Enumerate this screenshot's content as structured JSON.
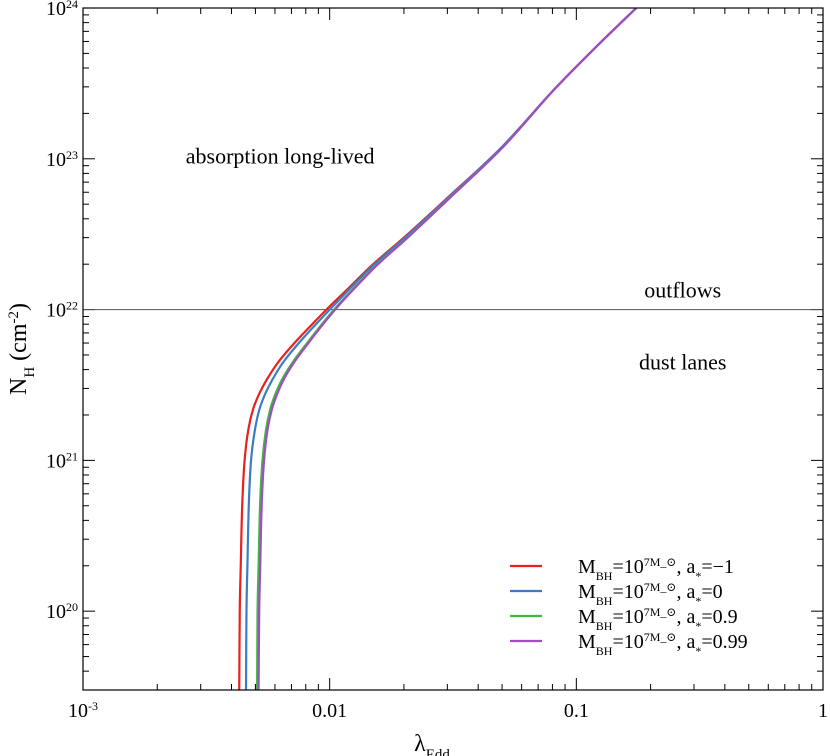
{
  "chart_data": {
    "type": "line",
    "xlabel": "λ_Edd",
    "ylabel": "N_H (cm^-2)",
    "x_scale": "log",
    "y_scale": "log",
    "xlim": [
      0.001,
      1
    ],
    "ylim": [
      3e+19,
      1e+24
    ],
    "x_ticks": [
      {
        "value": 0.001,
        "label": "10^-3"
      },
      {
        "value": 0.01,
        "label": "0.01"
      },
      {
        "value": 0.1,
        "label": "0.1"
      },
      {
        "value": 1,
        "label": "1"
      }
    ],
    "y_ticks": [
      {
        "value": 1e+20,
        "label": "10^20"
      },
      {
        "value": 1e+21,
        "label": "10^21"
      },
      {
        "value": 1e+22,
        "label": "10^22"
      },
      {
        "value": 1e+23,
        "label": "10^23"
      },
      {
        "value": 1e+24,
        "label": "10^24"
      }
    ],
    "reference_line": {
      "y": 1e+22
    },
    "annotations": [
      {
        "text": "absorption long-lived",
        "x": 0.0063,
        "y": 9.3e+22
      },
      {
        "text": "outflows",
        "x": 0.27,
        "y": 1.2e+22
      },
      {
        "text": "dust lanes",
        "x": 0.27,
        "y": 4e+21
      }
    ],
    "series": [
      {
        "name": "M_BH=10^7M_⊙, a_*=−1",
        "color": "#e8211c",
        "x": [
          0.0043,
          0.00432,
          0.00436,
          0.00442,
          0.00452,
          0.00468,
          0.0049,
          0.0052,
          0.0056,
          0.0062,
          0.0072,
          0.0085,
          0.01,
          0.012,
          0.015,
          0.02,
          0.03,
          0.05,
          0.08,
          0.12,
          0.175
        ],
        "y": [
          3e+19,
          1e+20,
          2e+20,
          5e+20,
          1e+21,
          1.6e+21,
          2.2e+21,
          2.8e+21,
          3.5e+21,
          4.5e+21,
          6e+21,
          8e+21,
          1.05e+22,
          1.4e+22,
          2e+22,
          3e+22,
          5.5e+22,
          1.2e+23,
          2.8e+23,
          5.5e+23,
          1e+24
        ]
      },
      {
        "name": "M_BH=10^7M_⊙, a_*=0",
        "color": "#3b7dc4",
        "x": [
          0.00458,
          0.0046,
          0.00464,
          0.0047,
          0.0048,
          0.00498,
          0.0052,
          0.0055,
          0.0059,
          0.0065,
          0.0075,
          0.0088,
          0.0103,
          0.0122,
          0.0152,
          0.0202,
          0.0302,
          0.05,
          0.08,
          0.12,
          0.175
        ],
        "y": [
          3e+19,
          1e+20,
          2e+20,
          5e+20,
          1e+21,
          1.6e+21,
          2.2e+21,
          2.8e+21,
          3.5e+21,
          4.5e+21,
          6e+21,
          8e+21,
          1.05e+22,
          1.4e+22,
          2e+22,
          3e+22,
          5.5e+22,
          1.2e+23,
          2.8e+23,
          5.5e+23,
          1e+24
        ]
      },
      {
        "name": "M_BH=10^7M_⊙, a_*=0.9",
        "color": "#3dba3d",
        "x": [
          0.00508,
          0.0051,
          0.00515,
          0.00522,
          0.00534,
          0.00552,
          0.00575,
          0.00605,
          0.00645,
          0.0071,
          0.0081,
          0.0093,
          0.0107,
          0.0126,
          0.0156,
          0.0206,
          0.0306,
          0.0505,
          0.08,
          0.12,
          0.175
        ],
        "y": [
          3e+19,
          1e+20,
          2e+20,
          5e+20,
          1e+21,
          1.6e+21,
          2.2e+21,
          2.8e+21,
          3.5e+21,
          4.5e+21,
          6e+21,
          8e+21,
          1.05e+22,
          1.4e+22,
          2e+22,
          3e+22,
          5.5e+22,
          1.2e+23,
          2.8e+23,
          5.5e+23,
          1e+24
        ]
      },
      {
        "name": "M_BH=10^7M_⊙, a_*=0.99",
        "color": "#a04cc4",
        "x": [
          0.00515,
          0.00518,
          0.00523,
          0.0053,
          0.00542,
          0.0056,
          0.00584,
          0.00615,
          0.00655,
          0.0072,
          0.0082,
          0.0094,
          0.0108,
          0.0127,
          0.0157,
          0.0207,
          0.0307,
          0.0505,
          0.08,
          0.12,
          0.175
        ],
        "y": [
          3e+19,
          1e+20,
          2e+20,
          5e+20,
          1e+21,
          1.6e+21,
          2.2e+21,
          2.8e+21,
          3.5e+21,
          4.5e+21,
          6e+21,
          8e+21,
          1.05e+22,
          1.4e+22,
          2e+22,
          3e+22,
          5.5e+22,
          1.2e+23,
          2.8e+23,
          5.5e+23,
          1e+24
        ]
      }
    ],
    "legend_position": "bottom-right",
    "grid": false
  }
}
